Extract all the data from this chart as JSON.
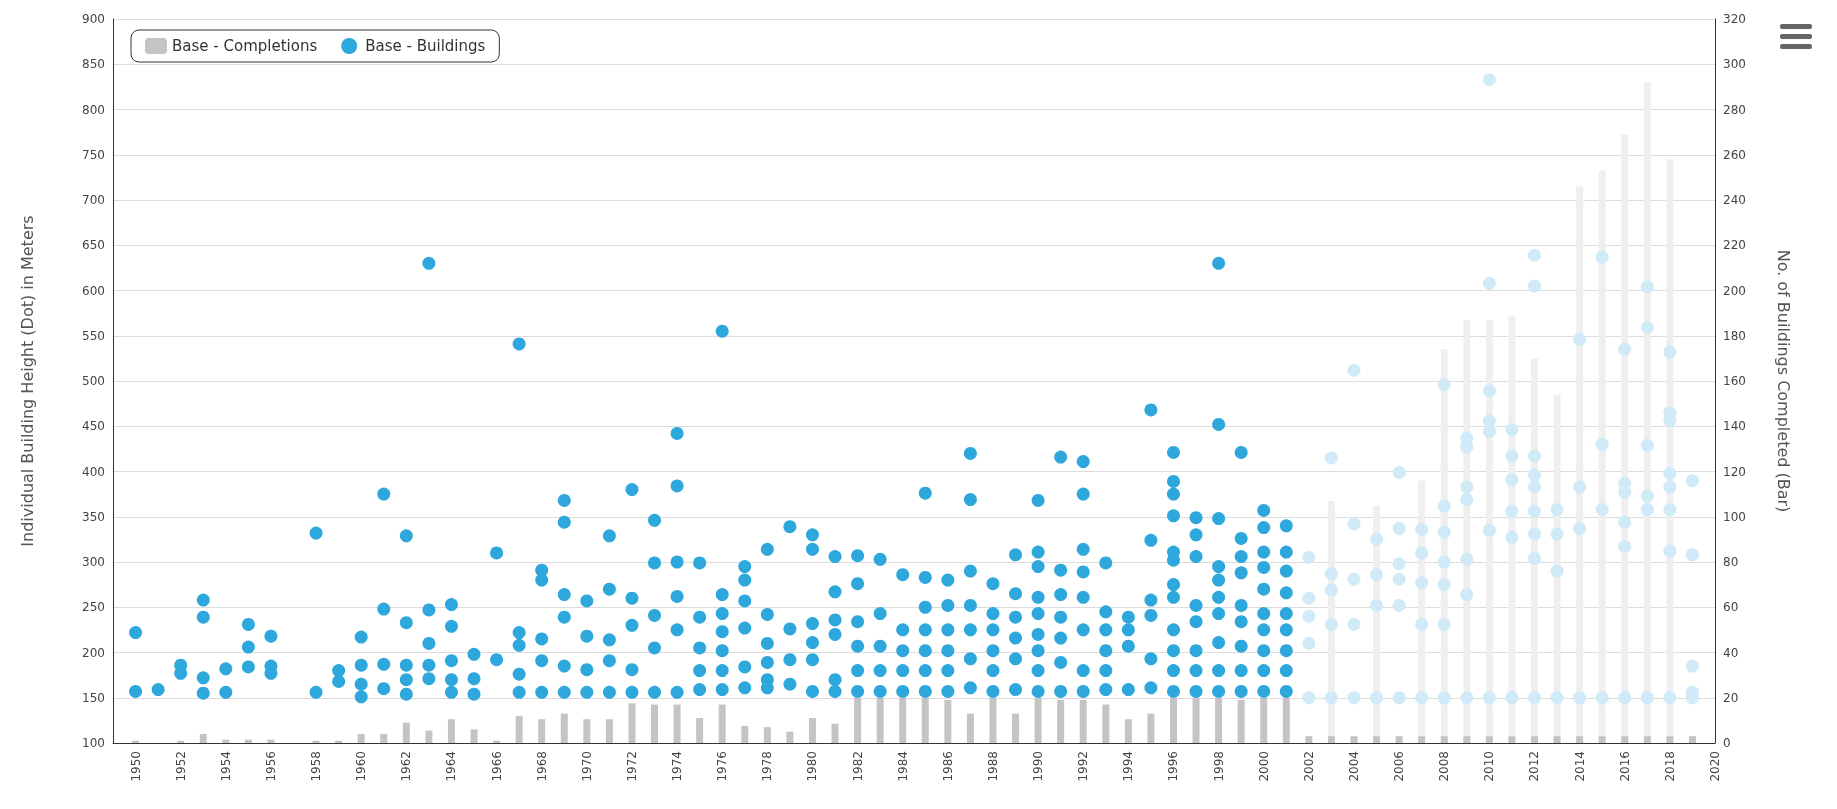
{
  "chart_data": {
    "type": "scatter",
    "ylabel": "Individual Building Height (Dot) in Meters",
    "y2label": "No. of Buildings Completed (Bar)",
    "xlim": [
      1949,
      2020
    ],
    "xticks": [
      1950,
      1952,
      1954,
      1956,
      1958,
      1960,
      1962,
      1964,
      1966,
      1968,
      1970,
      1972,
      1974,
      1976,
      1978,
      1980,
      1982,
      1984,
      1986,
      1988,
      1990,
      1992,
      1994,
      1996,
      1998,
      2000,
      2002,
      2004,
      2006,
      2008,
      2010,
      2012,
      2014,
      2016,
      2018,
      2020
    ],
    "ylim": [
      100,
      900
    ],
    "yticks": [
      100,
      150,
      200,
      250,
      300,
      350,
      400,
      450,
      500,
      550,
      600,
      650,
      700,
      750,
      800,
      850,
      900
    ],
    "y2lim": [
      0,
      320
    ],
    "y2ticks": [
      0,
      20,
      40,
      60,
      80,
      100,
      120,
      140,
      160,
      180,
      200,
      220,
      240,
      260,
      280,
      300,
      320
    ],
    "grid": "y",
    "legend": "top left",
    "marker": "circle",
    "series": [
      {
        "name": "Base - Completions",
        "type": "bar",
        "axis": "y2",
        "color": "#c4c4c4",
        "x": [
          1950,
          1951,
          1952,
          1953,
          1954,
          1955,
          1956,
          1957,
          1958,
          1959,
          1960,
          1961,
          1962,
          1963,
          1964,
          1965,
          1966,
          1967,
          1968,
          1969,
          1970,
          1971,
          1972,
          1973,
          1974,
          1975,
          1976,
          1977,
          1978,
          1979,
          1980,
          1981,
          1982,
          1983,
          1984,
          1985,
          1986,
          1987,
          1988,
          1989,
          1990,
          1991,
          1992,
          1993,
          1994,
          1995,
          1996,
          1997,
          1998,
          1999,
          2000,
          2001,
          2002,
          2003,
          2004,
          2005,
          2006,
          2007,
          2008,
          2009,
          2010,
          2011,
          2012,
          2013,
          2014,
          2015,
          2016,
          2017,
          2018,
          2019
        ],
        "values": [
          1,
          null,
          1,
          4,
          1.5,
          1.5,
          1.5,
          null,
          1,
          1,
          4,
          4,
          9,
          5.5,
          10.5,
          6,
          1,
          12,
          10.5,
          13,
          10.5,
          10.5,
          17.5,
          17,
          17,
          11,
          17,
          7.5,
          7,
          5,
          11,
          8.5,
          20,
          20,
          20,
          20,
          19,
          13,
          20,
          13,
          20,
          19,
          19,
          17,
          10.5,
          13,
          20,
          20,
          20,
          19,
          20,
          20,
          3,
          3,
          3,
          3,
          3,
          3,
          3,
          3,
          3,
          3,
          3,
          3,
          3,
          3,
          3,
          3,
          3,
          3
        ]
      },
      {
        "type": "bar",
        "axis": "y2",
        "color": "#efefef",
        "x": [
          2003,
          2005,
          2007,
          2008,
          2009,
          2010,
          2011,
          2012,
          2013,
          2014,
          2015,
          2016,
          2017,
          2018
        ],
        "values": [
          107,
          105,
          116,
          174,
          187,
          187,
          189,
          170,
          154,
          246,
          253,
          269,
          292,
          258
        ]
      },
      {
        "name": "Base - Buildings",
        "color": "#2ea8dc",
        "x": [
          1950,
          1950,
          1951,
          1952,
          1952,
          1953,
          1953,
          1953,
          1953,
          1954,
          1954,
          1955,
          1955,
          1955,
          1956,
          1956,
          1956,
          1958,
          1958,
          1959,
          1959,
          1960,
          1960,
          1960,
          1960,
          1961,
          1961,
          1961,
          1961,
          1962,
          1962,
          1962,
          1962,
          1962,
          1963,
          1963,
          1963,
          1963,
          1963,
          1964,
          1964,
          1964,
          1964,
          1964,
          1965,
          1965,
          1965,
          1966,
          1966,
          1967,
          1967,
          1967,
          1967,
          1967,
          1968,
          1968,
          1968,
          1968,
          1968,
          1969,
          1969,
          1969,
          1969,
          1969,
          1969,
          1970,
          1970,
          1970,
          1970,
          1971,
          1971,
          1971,
          1971,
          1971,
          1972,
          1972,
          1972,
          1972,
          1972,
          1973,
          1973,
          1973,
          1973,
          1973,
          1974,
          1974,
          1974,
          1974,
          1974,
          1974,
          1975,
          1975,
          1975,
          1975,
          1975,
          1976,
          1976,
          1976,
          1976,
          1976,
          1976,
          1976,
          1977,
          1977,
          1977,
          1977,
          1977,
          1977,
          1978,
          1978,
          1978,
          1978,
          1978,
          1978,
          1979,
          1979,
          1979,
          1979,
          1980,
          1980,
          1980,
          1980,
          1980,
          1980,
          1981,
          1981,
          1981,
          1981,
          1981,
          1981,
          1982,
          1982,
          1982,
          1982,
          1982,
          1982,
          1983,
          1983,
          1983,
          1983,
          1983,
          1984,
          1984,
          1984,
          1984,
          1984,
          1985,
          1985,
          1985,
          1985,
          1985,
          1985,
          1985,
          1986,
          1986,
          1986,
          1986,
          1986,
          1986,
          1987,
          1987,
          1987,
          1987,
          1987,
          1987,
          1987,
          1988,
          1988,
          1988,
          1988,
          1988,
          1988,
          1989,
          1989,
          1989,
          1989,
          1989,
          1989,
          1990,
          1990,
          1990,
          1990,
          1990,
          1990,
          1990,
          1990,
          1990,
          1991,
          1991,
          1991,
          1991,
          1991,
          1991,
          1991,
          1992,
          1992,
          1992,
          1992,
          1992,
          1992,
          1992,
          1992,
          1993,
          1993,
          1993,
          1993,
          1993,
          1993,
          1994,
          1994,
          1994,
          1994,
          1995,
          1995,
          1995,
          1995,
          1995,
          1995,
          1996,
          1996,
          1996,
          1996,
          1996,
          1996,
          1996,
          1996,
          1996,
          1996,
          1996,
          1996,
          1997,
          1997,
          1997,
          1997,
          1997,
          1997,
          1997,
          1997,
          1998,
          1998,
          1998,
          1998,
          1998,
          1998,
          1998,
          1998,
          1998,
          1998,
          1999,
          1999,
          1999,
          1999,
          1999,
          1999,
          1999,
          1999,
          1999,
          2000,
          2000,
          2000,
          2000,
          2000,
          2000,
          2000,
          2000,
          2000,
          2000,
          2001,
          2001,
          2001,
          2001,
          2001,
          2001,
          2001,
          2001,
          2001
        ],
        "values": [
          222,
          157,
          159,
          186,
          177,
          258,
          239,
          172,
          155,
          182,
          156,
          231,
          206,
          184,
          218,
          185,
          177,
          332,
          156,
          180,
          168,
          217,
          186,
          165,
          151,
          375,
          248,
          187,
          160,
          329,
          233,
          186,
          170,
          154,
          630,
          247,
          210,
          186,
          171,
          253,
          229,
          191,
          170,
          156,
          198,
          171,
          154,
          310,
          192,
          541,
          222,
          208,
          176,
          156,
          291,
          280,
          215,
          191,
          156,
          368,
          344,
          264,
          239,
          185,
          156,
          257,
          218,
          181,
          156,
          329,
          270,
          214,
          191,
          156,
          380,
          260,
          230,
          181,
          156,
          346,
          299,
          241,
          205,
          156,
          442,
          384,
          300,
          262,
          225,
          156,
          299,
          239,
          205,
          180,
          159,
          555,
          264,
          243,
          223,
          202,
          180,
          159,
          295,
          280,
          257,
          227,
          184,
          161,
          314,
          242,
          210,
          189,
          170,
          161,
          339,
          226,
          192,
          165,
          330,
          314,
          232,
          211,
          192,
          157,
          306,
          267,
          236,
          220,
          170,
          157,
          307,
          276,
          234,
          207,
          180,
          157,
          303,
          243,
          207,
          180,
          157,
          286,
          225,
          202,
          180,
          157,
          376,
          283,
          250,
          225,
          202,
          180,
          157,
          280,
          252,
          225,
          202,
          180,
          157,
          420,
          369,
          290,
          252,
          225,
          193,
          161,
          276,
          243,
          225,
          202,
          180,
          157,
          308,
          265,
          239,
          216,
          193,
          159,
          368,
          311,
          295,
          261,
          243,
          220,
          202,
          180,
          157,
          416,
          291,
          264,
          239,
          216,
          189,
          157,
          411,
          375,
          314,
          289,
          261,
          225,
          180,
          157,
          299,
          245,
          225,
          202,
          180,
          159,
          239,
          225,
          207,
          159,
          468,
          324,
          258,
          241,
          193,
          161,
          421,
          389,
          375,
          351,
          311,
          302,
          275,
          261,
          225,
          202,
          180,
          157,
          349,
          330,
          306,
          252,
          234,
          202,
          180,
          157,
          630,
          452,
          348,
          295,
          280,
          261,
          243,
          211,
          180,
          157,
          421,
          326,
          306,
          288,
          252,
          234,
          207,
          180,
          157,
          357,
          338,
          311,
          294,
          270,
          243,
          225,
          202,
          180,
          157,
          340,
          311,
          290,
          266,
          243,
          225,
          202,
          180,
          157
        ]
      },
      {
        "color": "#d0eaf7",
        "x": [
          2002,
          2002,
          2002,
          2002,
          2002,
          2003,
          2003,
          2003,
          2003,
          2003,
          2004,
          2004,
          2004,
          2004,
          2004,
          2005,
          2005,
          2005,
          2005,
          2006,
          2006,
          2006,
          2006,
          2006,
          2006,
          2007,
          2007,
          2007,
          2007,
          2007,
          2008,
          2008,
          2008,
          2008,
          2008,
          2008,
          2008,
          2009,
          2009,
          2009,
          2009,
          2009,
          2009,
          2009,
          2010,
          2010,
          2010,
          2010,
          2010,
          2010,
          2010,
          2011,
          2011,
          2011,
          2011,
          2011,
          2011,
          2012,
          2012,
          2012,
          2012,
          2012,
          2012,
          2012,
          2012,
          2012,
          2013,
          2013,
          2013,
          2013,
          2014,
          2014,
          2014,
          2014,
          2015,
          2015,
          2015,
          2015,
          2016,
          2016,
          2016,
          2016,
          2016,
          2016,
          2017,
          2017,
          2017,
          2017,
          2017,
          2017,
          2018,
          2018,
          2018,
          2018,
          2018,
          2018,
          2018,
          2018,
          2019,
          2019,
          2019,
          2019,
          2019
        ],
        "values": [
          305,
          260,
          240,
          210,
          150,
          415,
          287,
          269,
          231,
          150,
          512,
          342,
          281,
          231,
          150,
          325,
          286,
          252,
          150,
          399,
          337,
          298,
          281,
          252,
          150,
          336,
          310,
          277,
          231,
          150,
          496,
          362,
          333,
          300,
          275,
          231,
          150,
          437,
          427,
          383,
          369,
          303,
          264,
          150,
          833,
          608,
          489,
          456,
          444,
          335,
          150,
          446,
          417,
          391,
          356,
          327,
          150,
          639,
          605,
          417,
          396,
          383,
          356,
          331,
          304,
          150,
          358,
          331,
          290,
          150,
          546,
          383,
          337,
          150,
          637,
          430,
          358,
          150,
          535,
          387,
          377,
          344,
          317,
          150,
          604,
          559,
          429,
          373,
          358,
          150,
          532,
          465,
          456,
          398,
          383,
          358,
          312,
          150,
          390,
          308,
          185,
          156,
          150
        ]
      }
    ]
  }
}
